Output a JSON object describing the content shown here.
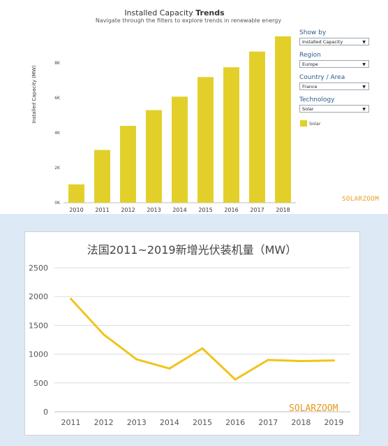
{
  "top_chart": {
    "title_plain": "Installed Capacity",
    "title_bold": "Trends",
    "subtitle": "Navigate through the filters to explore trends in renewable energy",
    "filters": [
      {
        "label": "Show by",
        "value": "Installed Capacity"
      },
      {
        "label": "Region",
        "value": "Europe"
      },
      {
        "label": "Country / Area",
        "value": "France"
      },
      {
        "label": "Technology",
        "value": "Solar"
      }
    ],
    "legend_label": "Solar",
    "watermark": "SOLARZOOM"
  },
  "bottom_chart": {
    "title": "法国2011~2019新增光伏装机量（MW）",
    "watermark": "SOLARZOOM"
  },
  "colors": {
    "bar": "#e3cf2a",
    "line": "#f0c419",
    "grid": "#dcdcdc"
  },
  "chart_data": [
    {
      "type": "bar",
      "title": "Installed Capacity Trends",
      "subtitle": "Navigate through the filters to explore trends in renewable energy",
      "ylabel": "Installed Capacity (MW)",
      "categories": [
        "2010",
        "2011",
        "2012",
        "2013",
        "2014",
        "2015",
        "2016",
        "2017",
        "2018"
      ],
      "series": [
        {
          "name": "Solar",
          "values": [
            1050,
            3020,
            4400,
            5300,
            6070,
            7190,
            7750,
            8650,
            9520
          ]
        }
      ],
      "yticks": [
        "0K",
        "2K",
        "4K",
        "6K",
        "8K"
      ],
      "ylim": [
        0,
        10000
      ],
      "grid": false,
      "legend": "right"
    },
    {
      "type": "line",
      "title": "法国2011~2019新增光伏装机量（MW）",
      "categories": [
        "2011",
        "2012",
        "2013",
        "2014",
        "2015",
        "2016",
        "2017",
        "2018",
        "2019"
      ],
      "series": [
        {
          "values": [
            1960,
            1340,
            910,
            750,
            1100,
            560,
            900,
            880,
            890
          ]
        }
      ],
      "yticks": [
        0,
        500,
        1000,
        1500,
        2000,
        2500
      ],
      "ylim": [
        0,
        2500
      ],
      "grid": true
    }
  ]
}
